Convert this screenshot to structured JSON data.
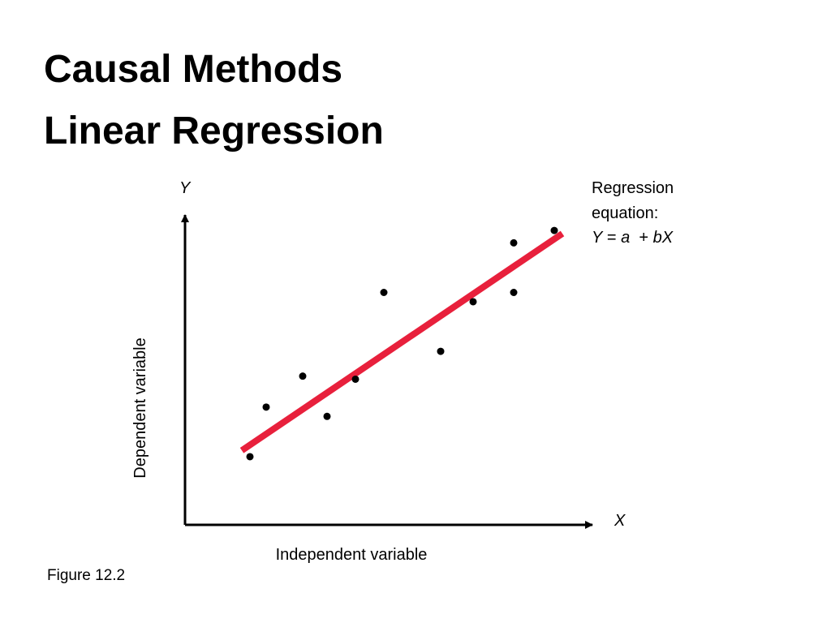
{
  "slide": {
    "title_line1": "Causal Methods",
    "title_line2": "Linear Regression",
    "caption": "Figure 12.2"
  },
  "chart_data": {
    "type": "scatter",
    "title": "",
    "xlabel": "Independent variable",
    "ylabel": "Dependent variable",
    "x_axis_letter": "X",
    "y_axis_letter": "Y",
    "xlim": [
      0,
      10
    ],
    "ylim": [
      0,
      10
    ],
    "grid": false,
    "tick_labels": false,
    "point_color": "#000000",
    "line_color": "#e8203c",
    "axis_color": "#000000",
    "points": [
      {
        "x": 1.6,
        "y": 2.2
      },
      {
        "x": 2.0,
        "y": 3.8
      },
      {
        "x": 2.9,
        "y": 4.8
      },
      {
        "x": 3.5,
        "y": 3.5
      },
      {
        "x": 4.2,
        "y": 4.7
      },
      {
        "x": 4.9,
        "y": 7.5
      },
      {
        "x": 6.3,
        "y": 5.6
      },
      {
        "x": 7.1,
        "y": 7.2
      },
      {
        "x": 8.1,
        "y": 7.5
      },
      {
        "x": 8.1,
        "y": 9.1
      },
      {
        "x": 9.1,
        "y": 9.5
      }
    ],
    "regression_line": {
      "x": [
        1.4,
        9.3
      ],
      "y": [
        2.4,
        9.4
      ]
    },
    "annotation": {
      "line1": "Regression",
      "line2": "equation:",
      "equation_Y": "Y",
      "equation_eq": " = ",
      "equation_a": "a",
      "equation_plus": "  + ",
      "equation_bX": "bX"
    }
  }
}
